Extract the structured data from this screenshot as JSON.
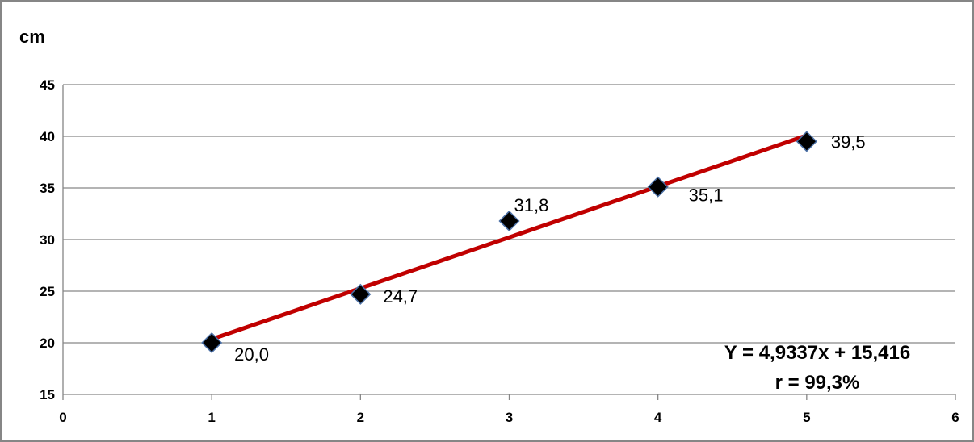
{
  "chart_data": {
    "type": "scatter",
    "ylabel": "cm",
    "xlim": [
      0,
      6
    ],
    "ylim": [
      15,
      45
    ],
    "x_ticks": [
      0,
      1,
      2,
      3,
      4,
      5,
      6
    ],
    "y_ticks": [
      15,
      20,
      25,
      30,
      35,
      40,
      45
    ],
    "grid": "horizontal",
    "series": [
      {
        "x": [
          1,
          2,
          3,
          4,
          5
        ],
        "y": [
          20.0,
          24.7,
          31.8,
          35.1,
          39.5
        ],
        "labels": [
          "20,0",
          "24,7",
          "31,8",
          "35,1",
          "39,5"
        ],
        "marker": "diamond",
        "marker_color": "#000000",
        "marker_edge_color": "#4a6fa5"
      }
    ],
    "trendline": {
      "slope": 4.9337,
      "intercept": 15.416,
      "color": "#c00000"
    },
    "annotations": [
      "Y = 4,9337x + 15,416",
      "r = 99,3%"
    ],
    "frame_color": "#868686",
    "grid_color": "#868686"
  }
}
